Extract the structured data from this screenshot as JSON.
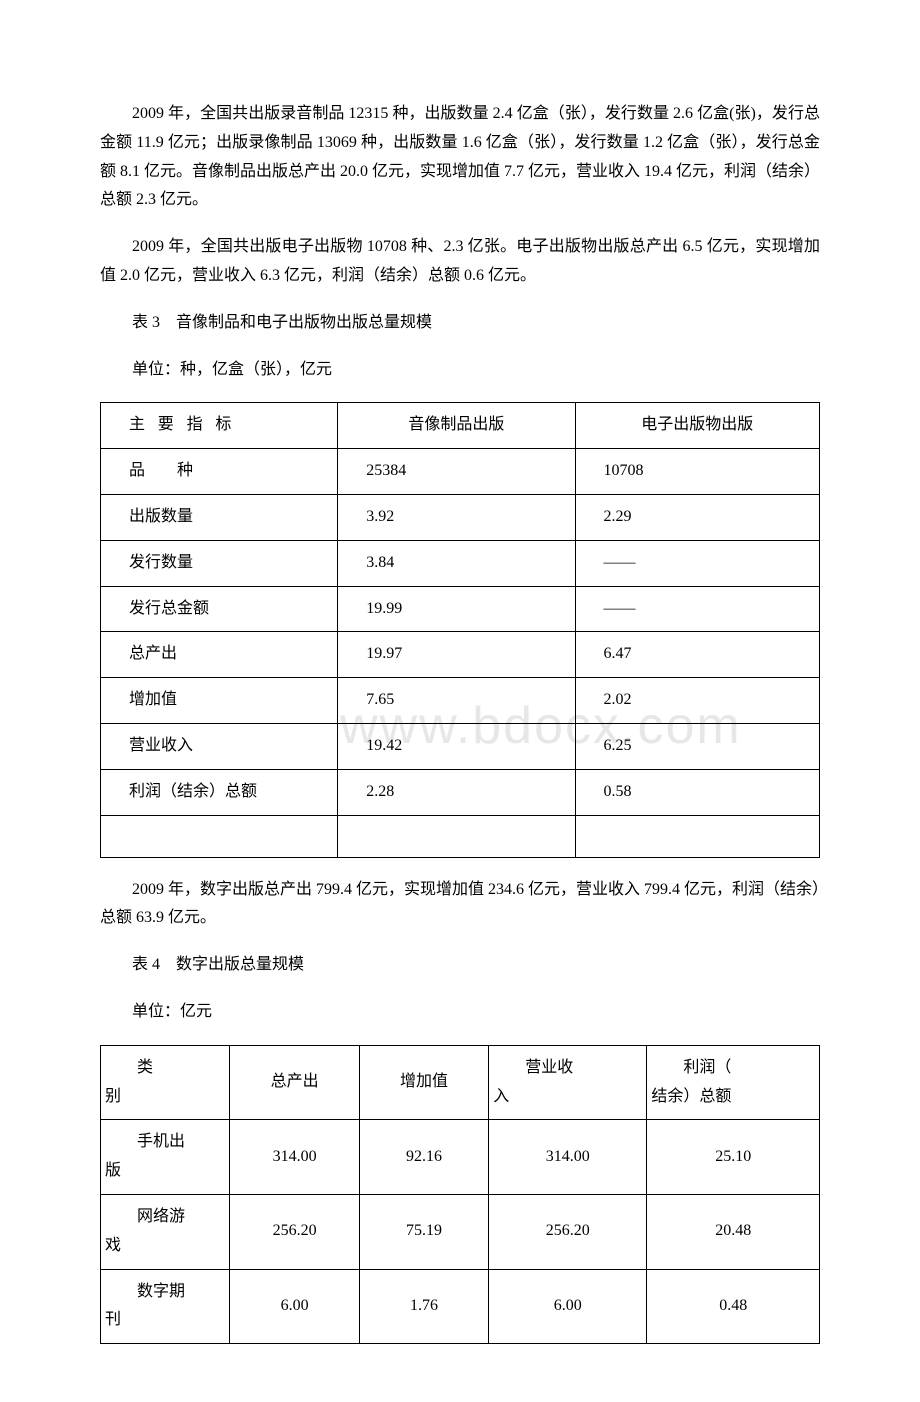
{
  "watermark": "www.bdocx.com",
  "para1": "2009 年，全国共出版录音制品 12315 种，出版数量 2.4 亿盒（张），发行数量 2.6 亿盒(张)，发行总金额 11.9 亿元；出版录像制品 13069 种，出版数量 1.6 亿盒（张），发行数量 1.2 亿盒（张），发行总金额 8.1 亿元。音像制品出版总产出 20.0 亿元，实现增加值 7.7 亿元，营业收入 19.4 亿元，利润（结余）总额 2.3 亿元。",
  "para2": "2009 年，全国共出版电子出版物 10708 种、2.3 亿张。电子出版物出版总产出 6.5 亿元，实现增加值 2.0 亿元，营业收入 6.3 亿元，利润（结余）总额 0.6 亿元。",
  "table3_title": "表 3　音像制品和电子出版物出版总量规模",
  "table3_unit": "单位：种，亿盒（张），亿元",
  "table3": {
    "header": [
      "主要指标",
      "音像制品出版",
      "电子出版物出版"
    ],
    "rows": [
      [
        "品　　种",
        "25384",
        "10708"
      ],
      [
        "出版数量",
        "3.92",
        "2.29"
      ],
      [
        "发行数量",
        "3.84",
        "——"
      ],
      [
        "发行总金额",
        "19.99",
        "——"
      ],
      [
        "总产出",
        "19.97",
        "6.47"
      ],
      [
        "增加值",
        "7.65",
        "2.02"
      ],
      [
        "营业收入",
        "19.42",
        "6.25"
      ],
      [
        "利润（结余）总额",
        "2.28",
        "0.58"
      ],
      [
        "",
        "",
        ""
      ]
    ]
  },
  "para3": "2009 年，数字出版总产出 799.4 亿元，实现增加值 234.6 亿元，营业收入 799.4 亿元，利润（结余）总额 63.9 亿元。",
  "table4_title": "表 4　数字出版总量规模",
  "table4_unit": "单位：亿元",
  "table4": {
    "header": {
      "c0a": "类",
      "c0b": "别",
      "c1": "总产出",
      "c2": "增加值",
      "c3a": "营业收",
      "c3b": "入",
      "c4a": "利润（",
      "c4b": "结余）总额"
    },
    "rows": [
      {
        "la": "手机出",
        "lb": "版",
        "v": [
          "314.00",
          "92.16",
          "314.00",
          "25.10"
        ]
      },
      {
        "la": "网络游",
        "lb": "戏",
        "v": [
          "256.20",
          "75.19",
          "256.20",
          "20.48"
        ]
      },
      {
        "la": "数字期",
        "lb": "刊",
        "v": [
          "6.00",
          "1.76",
          "6.00",
          "0.48"
        ]
      }
    ]
  }
}
